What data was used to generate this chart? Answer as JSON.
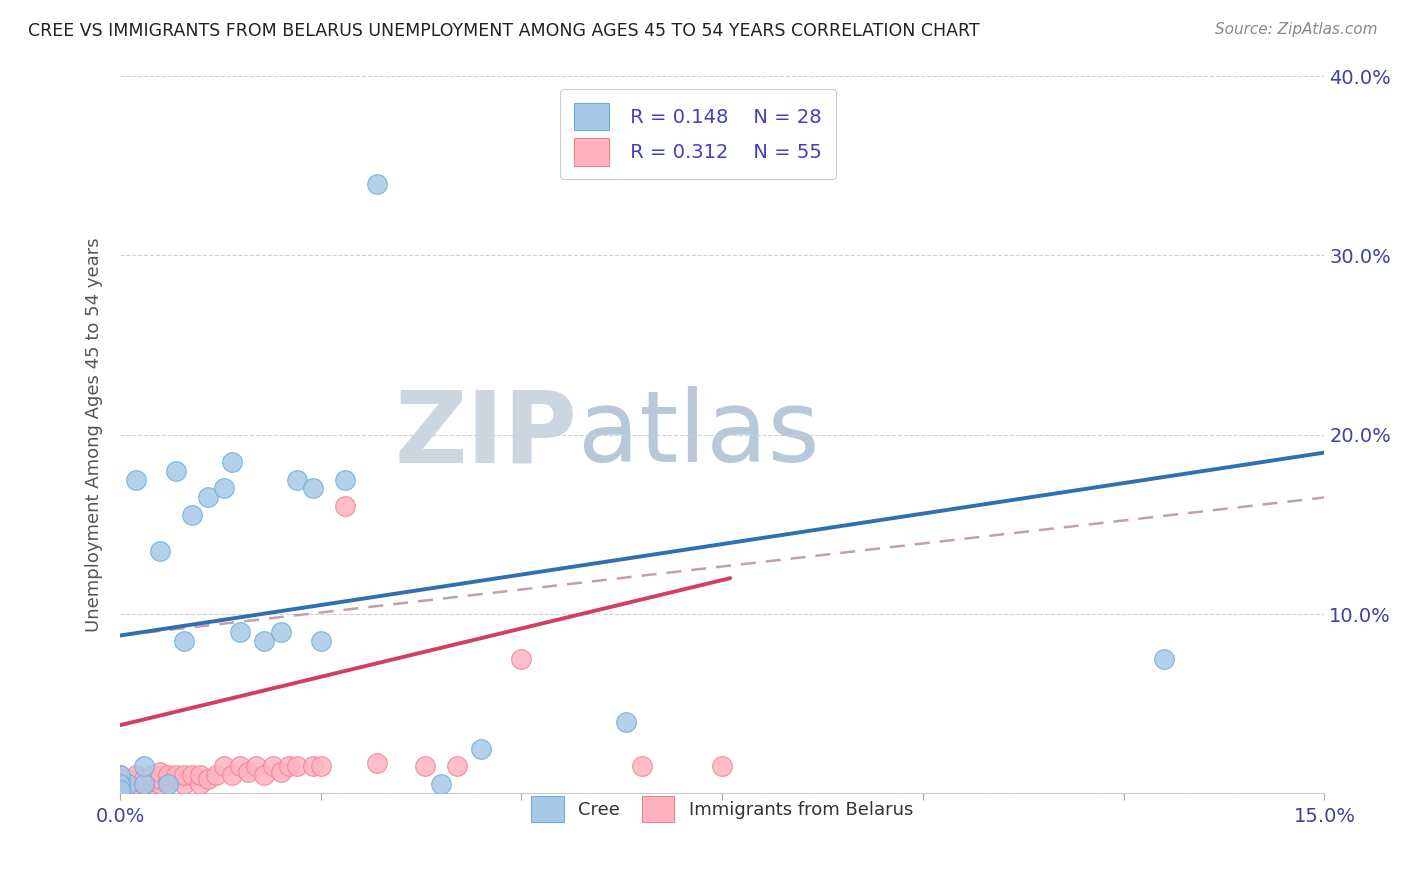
{
  "title": "CREE VS IMMIGRANTS FROM BELARUS UNEMPLOYMENT AMONG AGES 45 TO 54 YEARS CORRELATION CHART",
  "source": "Source: ZipAtlas.com",
  "ylabel": "Unemployment Among Ages 45 to 54 years",
  "xlim": [
    0,
    0.15
  ],
  "ylim": [
    0,
    0.4
  ],
  "legend_r_cree": "R = 0.148",
  "legend_n_cree": "N = 28",
  "legend_r_belarus": "R = 0.312",
  "legend_n_belarus": "N = 55",
  "cree_color": "#a8c8e8",
  "cree_edge_color": "#6baed6",
  "belarus_color": "#ffb3c0",
  "belarus_edge_color": "#f08090",
  "trend_cree_color": "#3070b0",
  "trend_belarus_color": "#d04060",
  "dash_color": "#c0a0b0",
  "watermark_zip": "ZIP",
  "watermark_atlas": "atlas",
  "background_color": "#ffffff",
  "legend_text_color": "#4040c0",
  "cree_trend_x": [
    0.0,
    0.15
  ],
  "cree_trend_y": [
    0.088,
    0.19
  ],
  "belarus_trend_x": [
    0.0,
    0.076
  ],
  "belarus_trend_y": [
    0.038,
    0.12
  ],
  "dash_trend_x": [
    0.0,
    0.15
  ],
  "dash_trend_y": [
    0.088,
    0.165
  ],
  "cree_x": [
    0.002,
    0.005,
    0.006,
    0.007,
    0.008,
    0.009,
    0.011,
    0.013,
    0.014,
    0.015,
    0.018,
    0.02,
    0.022,
    0.024,
    0.025,
    0.028,
    0.032,
    0.04,
    0.045,
    0.001,
    0.003,
    0.003,
    0.0,
    0.0,
    0.0,
    0.0,
    0.063,
    0.13
  ],
  "cree_y": [
    0.175,
    0.135,
    0.005,
    0.18,
    0.085,
    0.155,
    0.165,
    0.17,
    0.185,
    0.09,
    0.085,
    0.09,
    0.175,
    0.17,
    0.085,
    0.175,
    0.34,
    0.005,
    0.025,
    0.005,
    0.005,
    0.015,
    0.005,
    0.01,
    0.005,
    0.002,
    0.04,
    0.075
  ],
  "belarus_x": [
    0.0,
    0.0,
    0.0,
    0.0,
    0.0,
    0.0,
    0.0,
    0.0,
    0.0,
    0.0,
    0.001,
    0.001,
    0.001,
    0.001,
    0.002,
    0.002,
    0.002,
    0.003,
    0.003,
    0.004,
    0.004,
    0.004,
    0.005,
    0.005,
    0.005,
    0.006,
    0.006,
    0.007,
    0.007,
    0.008,
    0.008,
    0.009,
    0.01,
    0.01,
    0.011,
    0.012,
    0.013,
    0.014,
    0.015,
    0.016,
    0.017,
    0.018,
    0.019,
    0.02,
    0.021,
    0.022,
    0.024,
    0.025,
    0.028,
    0.032,
    0.038,
    0.042,
    0.05,
    0.065,
    0.075
  ],
  "belarus_y": [
    0.0,
    0.002,
    0.003,
    0.004,
    0.005,
    0.006,
    0.007,
    0.008,
    0.009,
    0.01,
    0.0,
    0.003,
    0.005,
    0.008,
    0.005,
    0.007,
    0.01,
    0.005,
    0.008,
    0.005,
    0.007,
    0.01,
    0.005,
    0.008,
    0.012,
    0.007,
    0.01,
    0.008,
    0.01,
    0.005,
    0.01,
    0.01,
    0.005,
    0.01,
    0.008,
    0.01,
    0.015,
    0.01,
    0.015,
    0.012,
    0.015,
    0.01,
    0.015,
    0.012,
    0.015,
    0.015,
    0.015,
    0.015,
    0.16,
    0.017,
    0.015,
    0.015,
    0.075,
    0.015,
    0.015
  ]
}
